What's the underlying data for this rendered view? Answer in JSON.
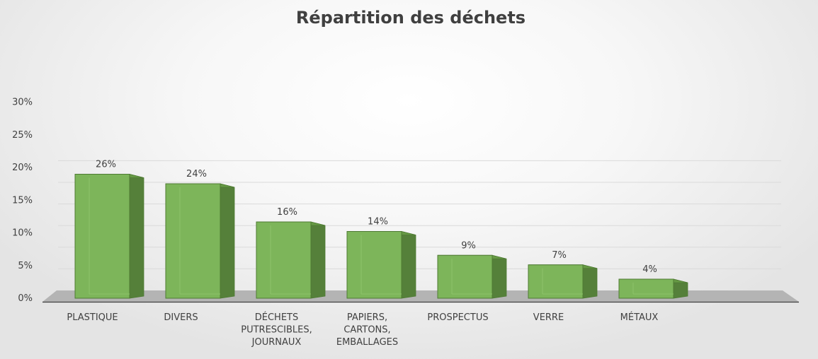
{
  "chart_data": {
    "type": "bar",
    "title": "Répartition des déchets",
    "xlabel": "",
    "ylabel": "",
    "categories": [
      [
        "PLASTIQUE"
      ],
      [
        "DIVERS"
      ],
      [
        "DÉCHETS",
        "PUTRESCIBLES,",
        "JOURNAUX"
      ],
      [
        "PAPIERS,",
        "CARTONS,",
        "EMBALLAGES"
      ],
      [
        "PROSPECTUS"
      ],
      [
        "VERRE"
      ],
      [
        "MÉTAUX"
      ]
    ],
    "values": [
      26,
      24,
      16,
      14,
      9,
      7,
      4
    ],
    "value_labels": [
      "26%",
      "24%",
      "16%",
      "14%",
      "9%",
      "7%",
      "4%"
    ],
    "ylim": [
      0,
      30
    ],
    "y_ticks": [
      0,
      5,
      10,
      15,
      20,
      25,
      30
    ],
    "y_tick_labels": [
      "0%",
      "5%",
      "10%",
      "15%",
      "20%",
      "25%",
      "30%"
    ],
    "grid": true,
    "legend": "none",
    "bar_color": "#7db55a",
    "bar_color_light": "#8dc46a",
    "bar_edge_color": "#4e7a33",
    "bar_side_color": "#55803a",
    "bar_top_color": "#669944",
    "floor_color": "#b4b4b4",
    "axis_color": "#404040"
  }
}
